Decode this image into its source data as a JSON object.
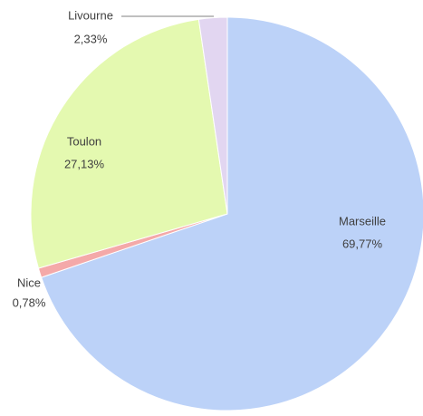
{
  "chart_data": {
    "type": "pie",
    "categories": [
      "Marseille",
      "Nice",
      "Toulon",
      "Livourne"
    ],
    "values": [
      69.77,
      0.78,
      27.13,
      2.33
    ],
    "value_labels": [
      "69,77%",
      "0,78%",
      "27,13%",
      "2,33%"
    ],
    "colors": [
      "#bcd2f8",
      "#f4a9a9",
      "#e4f9b0",
      "#e2d6f1"
    ]
  }
}
